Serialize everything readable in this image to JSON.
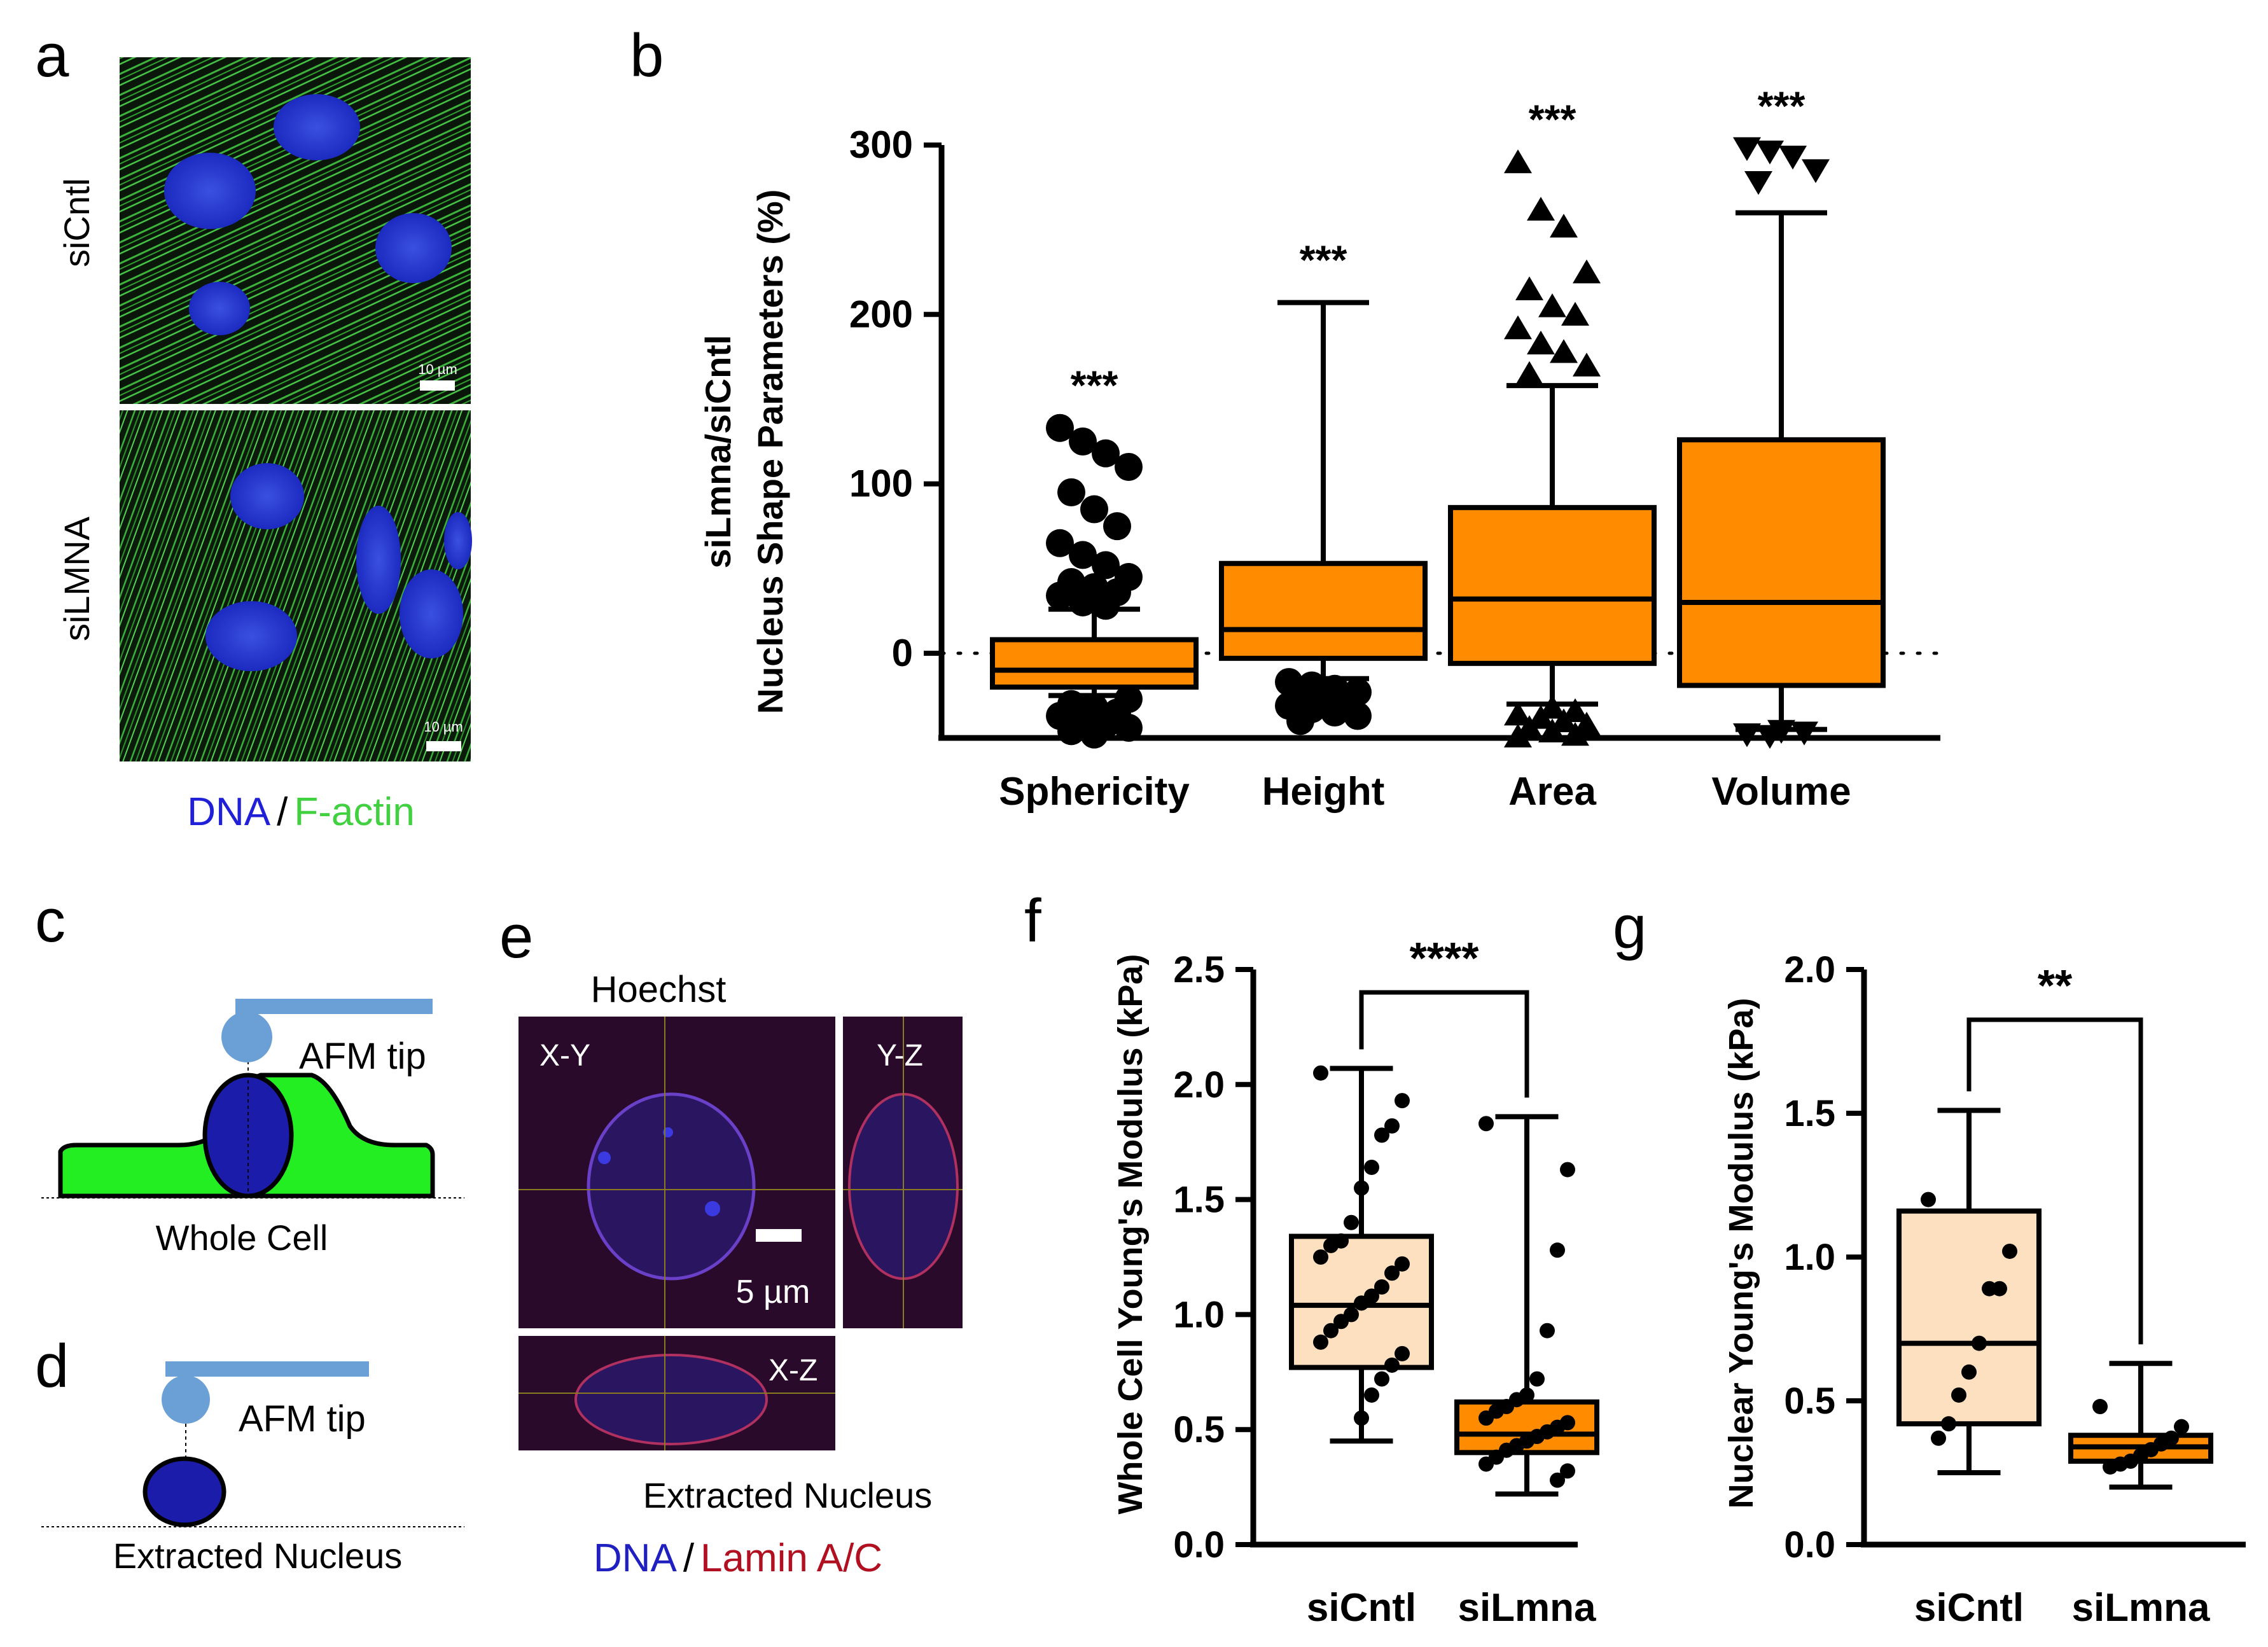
{
  "panel_letters": {
    "a": "a",
    "b": "b",
    "c": "c",
    "d": "d",
    "e": "e",
    "f": "f",
    "g": "g"
  },
  "panel_a": {
    "row_labels": [
      "siCntl",
      "siLMNA"
    ],
    "scale_bar": "10 µm",
    "legend": {
      "dna": "DNA",
      "sep": "/",
      "factin": "F-actin"
    },
    "colors": {
      "dna": "#2020d8",
      "factin": "#40e040",
      "background": "#0a140a"
    }
  },
  "panel_c": {
    "tip_label": "AFM tip",
    "caption": "Whole Cell"
  },
  "panel_d": {
    "tip_label": "AFM tip",
    "caption": "Extracted Nucleus"
  },
  "panel_e": {
    "title": "Hoechst",
    "views": {
      "xy": "X-Y",
      "yz": "Y-Z",
      "xz": "X-Z"
    },
    "scale_bar": "5 µm",
    "caption": "Extracted Nucleus",
    "legend": {
      "dna": "DNA",
      "sep": "/",
      "lamin": "Lamin A/C"
    }
  },
  "chart_data": [
    {
      "id": "b",
      "type": "box",
      "ylabel_line1": "siLmna/siCntl",
      "ylabel_line2": "Nucleus Shape Parameters (%)",
      "ylim": [
        -50,
        300
      ],
      "yticks": [
        0,
        100,
        200,
        300
      ],
      "reference_line": 0,
      "box_color": "#ff8c00",
      "categories": [
        "Sphericity",
        "Height",
        "Area",
        "Volume"
      ],
      "boxes": [
        {
          "min": -25,
          "q1": -20,
          "median": -10,
          "q3": 8,
          "max": 26,
          "significance": "***",
          "outliers": [
            133,
            125,
            118,
            110,
            95,
            85,
            75,
            65,
            58,
            52,
            45,
            42,
            39,
            36,
            34,
            30,
            28,
            -27,
            -30,
            -32,
            -35,
            -37,
            -40,
            -42,
            -44,
            -46,
            -48
          ]
        },
        {
          "min": -15,
          "q1": -3,
          "median": 14,
          "q3": 53,
          "max": 207,
          "significance": "***",
          "outliers": [
            -17,
            -19,
            -21,
            -23,
            -25,
            -27,
            -29,
            -31,
            -33,
            -35,
            -37,
            -40
          ]
        },
        {
          "min": -30,
          "q1": -6,
          "median": 32,
          "q3": 86,
          "max": 158,
          "significance": "***",
          "outliers": [
            290,
            262,
            252,
            225,
            215,
            205,
            200,
            192,
            183,
            178,
            170,
            165,
            -32,
            -34,
            -36,
            -38,
            -40,
            -42,
            -44,
            -46,
            -48,
            -49
          ]
        },
        {
          "min": -45,
          "q1": -19,
          "median": 30,
          "q3": 126,
          "max": 260,
          "significance": "***",
          "outliers": [
            298,
            296,
            293,
            285,
            278,
            -46,
            -47,
            -48,
            -49
          ]
        }
      ]
    },
    {
      "id": "f",
      "type": "box",
      "ylabel": "Whole Cell Young's Modulus (kPa)",
      "ylim": [
        0,
        2.5
      ],
      "yticks": [
        0.0,
        0.5,
        1.0,
        1.5,
        2.0,
        2.5
      ],
      "categories": [
        "siCntl",
        "siLmna"
      ],
      "significance": "****",
      "boxes": [
        {
          "min": 0.45,
          "q1": 0.77,
          "median": 1.04,
          "q3": 1.34,
          "max": 2.07,
          "color": "#fde0c0",
          "points": [
            2.05,
            1.93,
            1.82,
            1.78,
            1.64,
            1.55,
            1.4,
            1.32,
            1.3,
            1.25,
            1.22,
            1.18,
            1.12,
            1.08,
            1.05,
            1.0,
            0.97,
            0.93,
            0.88,
            0.83,
            0.78,
            0.72,
            0.65,
            0.55
          ]
        },
        {
          "min": 0.22,
          "q1": 0.4,
          "median": 0.48,
          "q3": 0.62,
          "max": 1.86,
          "color": "#ff8c00",
          "points": [
            1.83,
            1.63,
            1.28,
            0.93,
            0.72,
            0.65,
            0.63,
            0.6,
            0.58,
            0.55,
            0.53,
            0.51,
            0.49,
            0.47,
            0.45,
            0.43,
            0.41,
            0.38,
            0.35,
            0.32,
            0.28
          ]
        }
      ]
    },
    {
      "id": "g",
      "type": "box",
      "ylabel": "Nuclear Young's Modulus (kPa)",
      "ylim": [
        0,
        2.0
      ],
      "yticks": [
        0.0,
        0.5,
        1.0,
        1.5,
        2.0
      ],
      "categories": [
        "siCntl",
        "siLmna"
      ],
      "significance": "**",
      "boxes": [
        {
          "min": 0.25,
          "q1": 0.42,
          "median": 0.7,
          "q3": 1.16,
          "max": 1.51,
          "color": "#fde0c0",
          "points": [
            1.2,
            1.02,
            0.89,
            0.89,
            0.7,
            0.6,
            0.52,
            0.42,
            0.37
          ]
        },
        {
          "min": 0.2,
          "q1": 0.29,
          "median": 0.34,
          "q3": 0.38,
          "max": 0.63,
          "color": "#ff8c00",
          "points": [
            0.48,
            0.41,
            0.37,
            0.35,
            0.33,
            0.31,
            0.29,
            0.28,
            0.27
          ]
        }
      ]
    }
  ]
}
